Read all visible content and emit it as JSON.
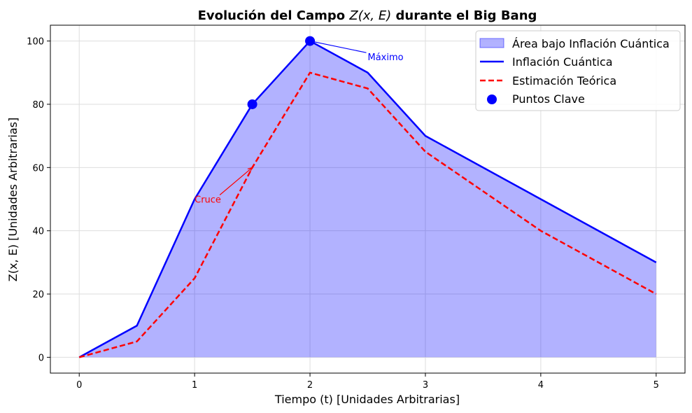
{
  "chart_data": {
    "type": "line",
    "title": "Evolución del Campo Z(x,E) durante el Big Bang",
    "title_prefix": "Evolución del Campo ",
    "title_math": "Z(x, E)",
    "title_suffix": " durante el Big Bang",
    "xlabel": "Tiempo (t) [Unidades Arbitrarias]",
    "ylabel": "Z(x, E) [Unidades Arbitrarias]",
    "xlim": [
      -0.25,
      5.25
    ],
    "ylim": [
      -5,
      105
    ],
    "xticks": [
      0,
      1,
      2,
      3,
      4,
      5
    ],
    "yticks": [
      0,
      20,
      40,
      60,
      80,
      100
    ],
    "grid": true,
    "legend_position": "top-right",
    "x": [
      0,
      0.5,
      1,
      1.5,
      2,
      2.5,
      3,
      4,
      5
    ],
    "series": [
      {
        "name": "Inflación Cuántica",
        "style": "solid",
        "color": "#0000ff",
        "values": [
          0,
          10,
          50,
          80,
          100,
          90,
          70,
          50,
          30
        ]
      },
      {
        "name": "Estimación Teórica",
        "style": "dashed",
        "color": "#ff0000",
        "values": [
          0,
          5,
          25,
          60,
          90,
          85,
          65,
          40,
          20
        ]
      }
    ],
    "fill": {
      "name": "Área bajo Inflación Cuántica",
      "color": "#0000ff",
      "opacity": 0.3
    },
    "key_points": {
      "name": "Puntos Clave",
      "color": "#0000ff",
      "points": [
        {
          "x": 1.5,
          "y": 80
        },
        {
          "x": 2,
          "y": 100
        }
      ]
    },
    "annotations": [
      {
        "text": "Máximo",
        "color": "#0000ff",
        "point": {
          "x": 2,
          "y": 100
        },
        "text_at": {
          "x": 2.5,
          "y": 95
        }
      },
      {
        "text": "Cruce",
        "color": "#ff0000",
        "point": {
          "x": 1.5,
          "y": 60
        },
        "text_at": {
          "x": 1,
          "y": 50
        }
      }
    ]
  }
}
